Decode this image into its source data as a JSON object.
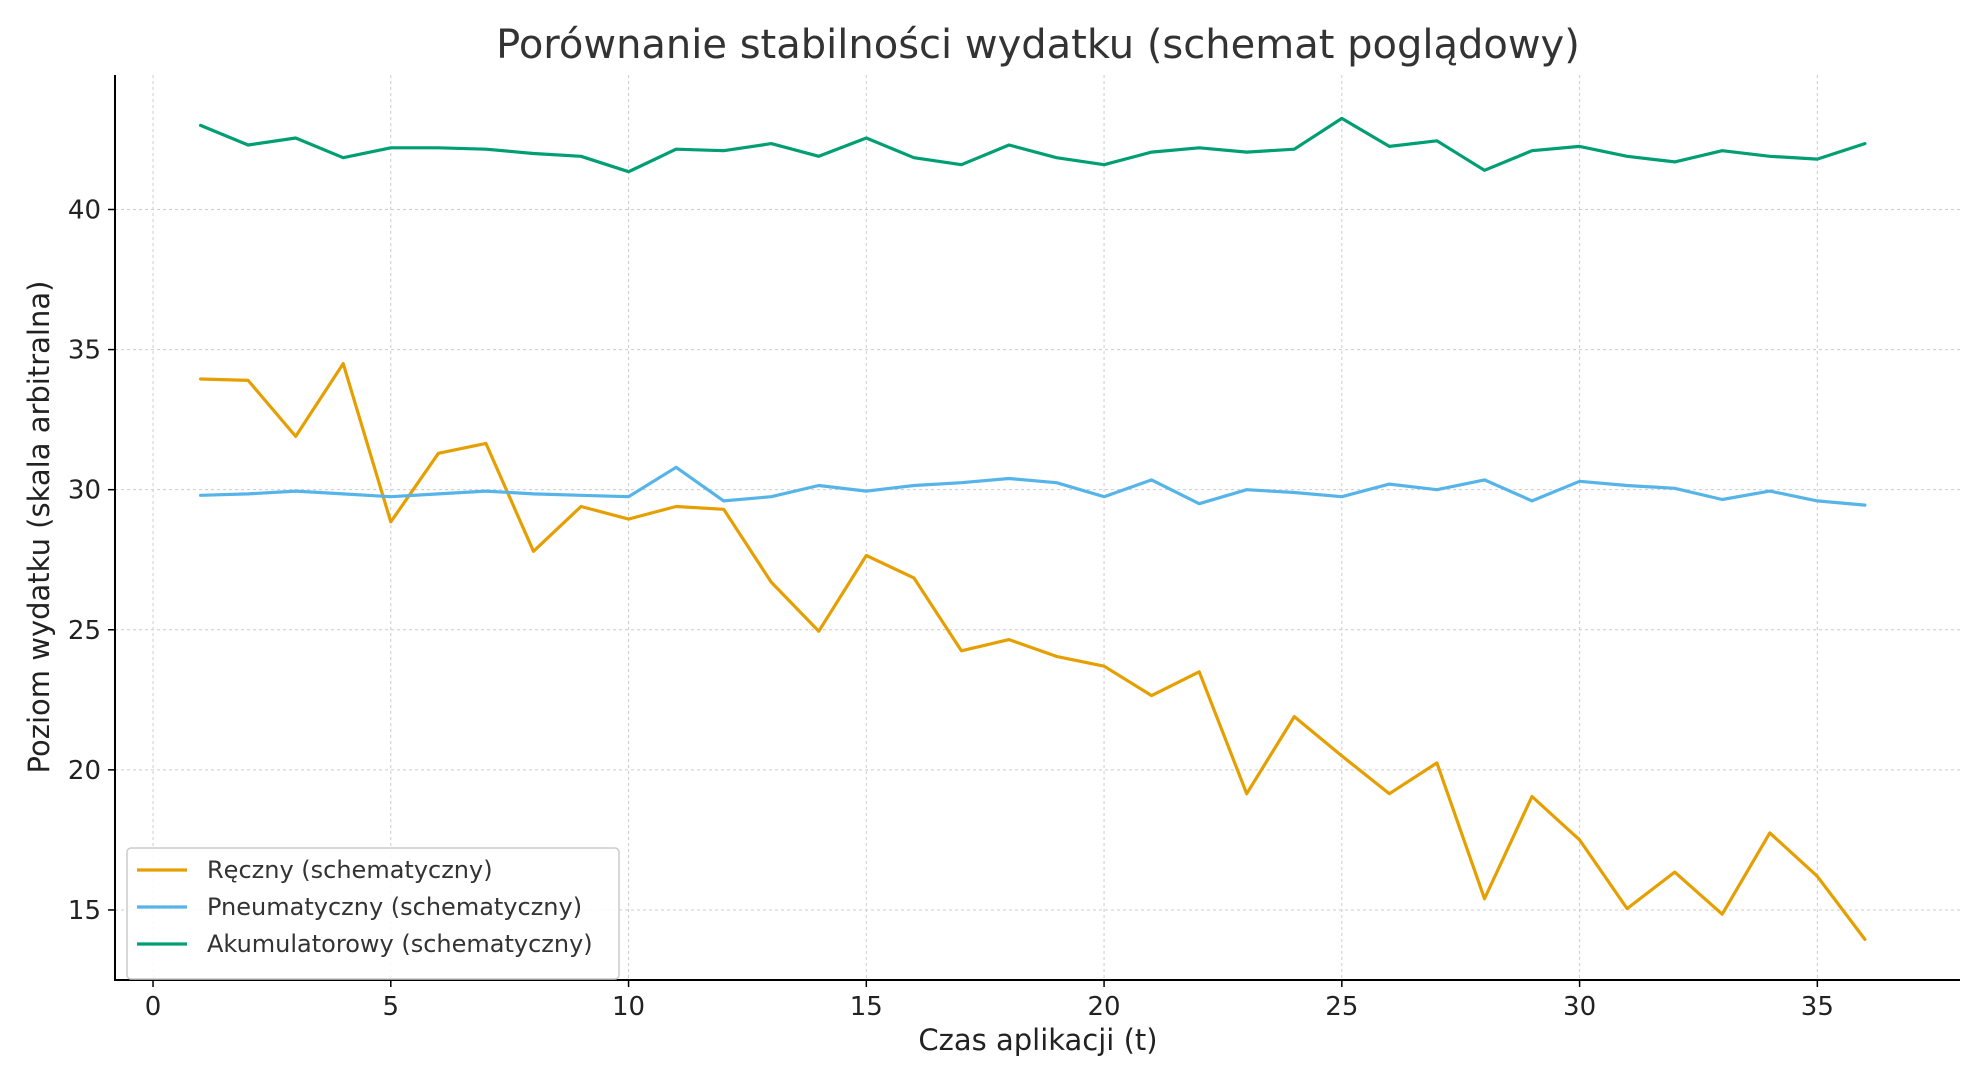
{
  "chart_data": {
    "type": "line",
    "title": "Porównanie stabilności wydatku (schemat poglądowy)",
    "xlabel": "Czas aplikacji (t)",
    "ylabel": "Poziom wydatku (skala arbitralna)",
    "xlim": [
      -0.8,
      38
    ],
    "ylim": [
      12.5,
      44.8
    ],
    "xticks": [
      0,
      5,
      10,
      15,
      20,
      25,
      30,
      35
    ],
    "yticks": [
      15,
      20,
      25,
      30,
      35,
      40
    ],
    "grid": true,
    "legend_position": "lower-left",
    "x": [
      1,
      2,
      3,
      4,
      5,
      6,
      7,
      8,
      9,
      10,
      11,
      12,
      13,
      14,
      15,
      16,
      17,
      18,
      19,
      20,
      21,
      22,
      23,
      24,
      25,
      26,
      27,
      28,
      29,
      30,
      31,
      32,
      33,
      34,
      35,
      36
    ],
    "series": [
      {
        "name": "Ręczny (schematyczny)",
        "color": "#E69F00",
        "values": [
          33.95,
          33.9,
          31.9,
          34.5,
          28.85,
          31.3,
          31.65,
          27.8,
          29.4,
          28.95,
          29.4,
          29.3,
          26.7,
          24.95,
          27.65,
          26.85,
          24.25,
          24.65,
          24.05,
          23.7,
          22.65,
          23.5,
          19.15,
          21.9,
          20.5,
          19.15,
          20.25,
          15.4,
          19.05,
          17.5,
          15.05,
          16.35,
          14.85,
          17.75,
          16.2,
          13.95
        ]
      },
      {
        "name": "Pneumatyczny (schematyczny)",
        "color": "#56B4E9",
        "values": [
          29.8,
          29.85,
          29.95,
          29.85,
          29.75,
          29.85,
          29.95,
          29.85,
          29.8,
          29.75,
          30.8,
          29.6,
          29.75,
          30.15,
          29.95,
          30.15,
          30.25,
          30.4,
          30.25,
          29.75,
          30.35,
          29.5,
          30.0,
          29.9,
          29.75,
          30.2,
          30.0,
          30.35,
          29.6,
          30.3,
          30.15,
          30.05,
          29.65,
          29.95,
          29.6,
          29.45
        ]
      },
      {
        "name": "Akumulatorowy (schematyczny)",
        "color": "#009E73",
        "values": [
          43.0,
          42.3,
          42.55,
          41.85,
          42.2,
          42.2,
          42.15,
          42.0,
          41.9,
          41.35,
          42.15,
          42.1,
          42.35,
          41.9,
          42.55,
          41.85,
          41.6,
          42.3,
          41.85,
          41.6,
          42.05,
          42.2,
          42.05,
          42.15,
          43.25,
          42.25,
          42.45,
          41.4,
          42.1,
          42.25,
          41.9,
          41.7,
          42.1,
          41.9,
          41.8,
          42.35
        ]
      }
    ]
  }
}
